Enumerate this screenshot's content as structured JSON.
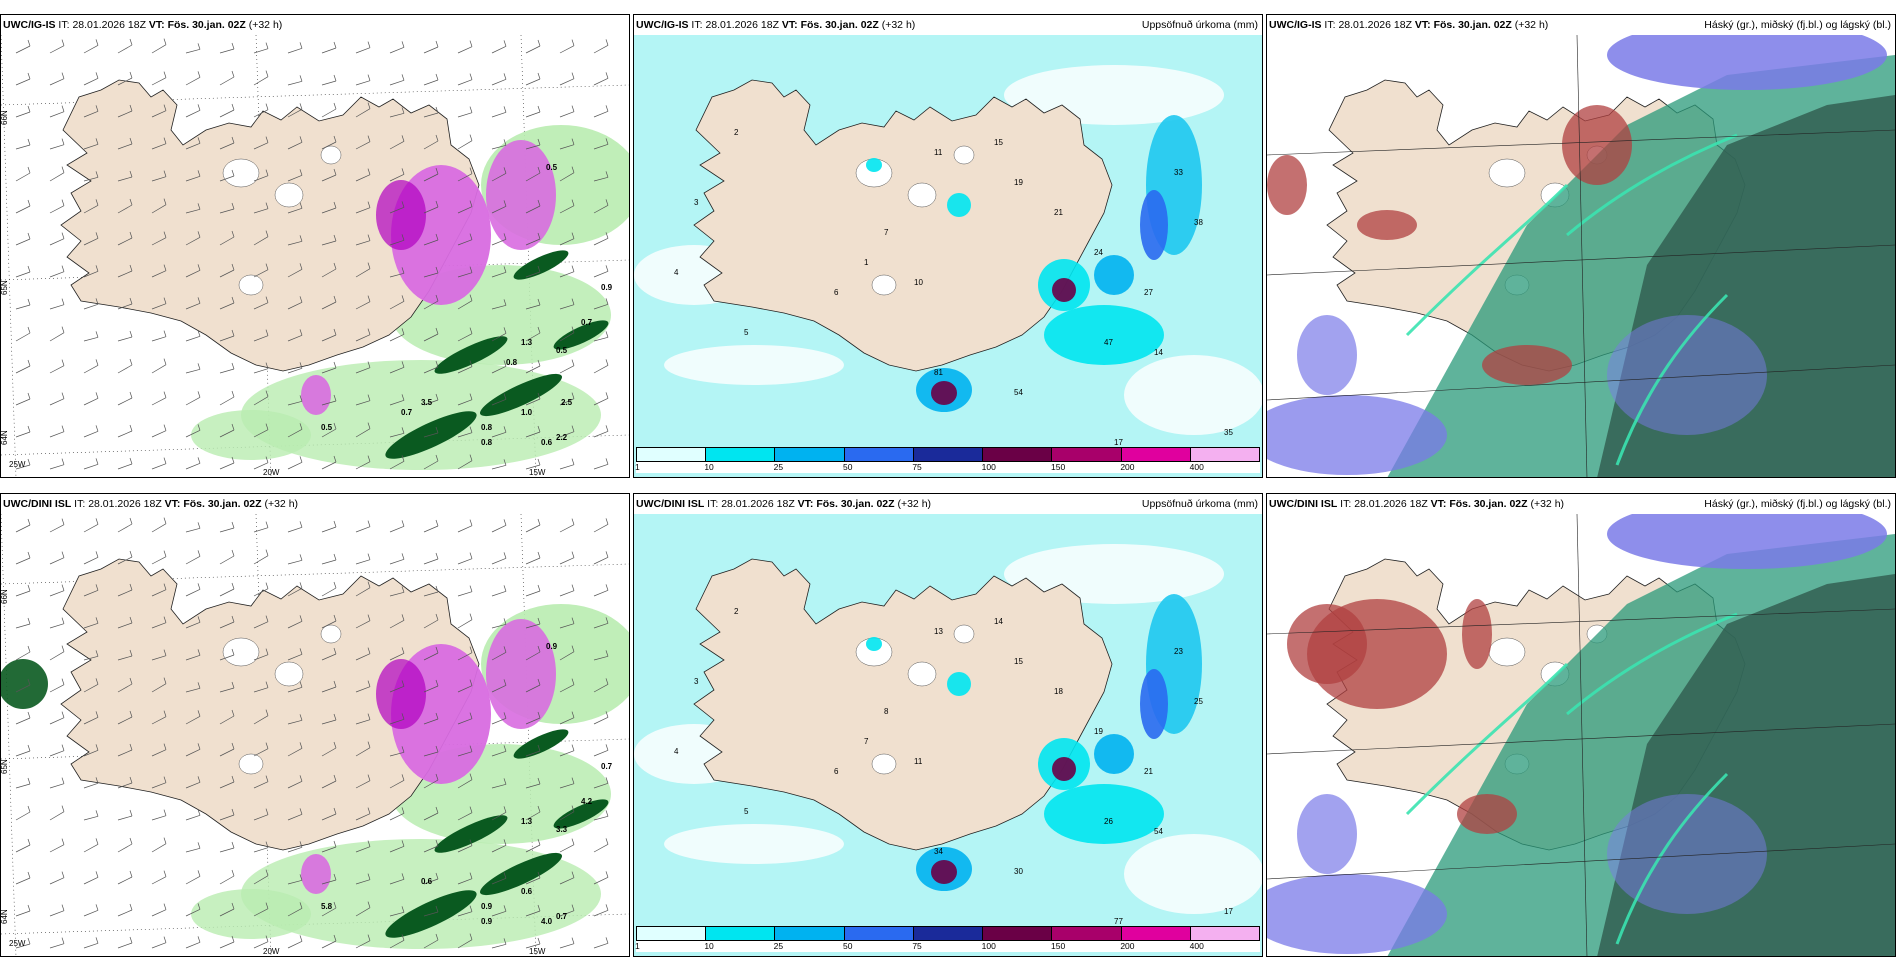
{
  "panels": [
    {
      "model": "UWC/IG-IS",
      "init_label": "IT:",
      "init_value": "28.01.2026 18Z",
      "valid_label": "VT: Fös. 30.jan. 02Z",
      "lead": "(+32 h)",
      "right_title": "",
      "type": "wind",
      "coord_labels": [
        "66N",
        "65N",
        "64N",
        "25W",
        "20W",
        "15W"
      ],
      "values": [
        "0.5",
        "0.9",
        "0.7",
        "0.5",
        "0.8",
        "0.5",
        "3.5",
        "0.8",
        "1.0",
        "0.6",
        "2.2",
        "1.3",
        "0.8",
        "2.5",
        "0.7"
      ]
    },
    {
      "model": "UWC/IG-IS",
      "init_label": "IT:",
      "init_value": "28.01.2026 18Z",
      "valid_label": "VT: Fös. 30.jan. 02Z",
      "lead": "(+32 h)",
      "right_title": "Uppsöfnuð úrkoma (mm)",
      "type": "precip",
      "values": [
        "2",
        "3",
        "4",
        "5",
        "6",
        "1",
        "7",
        "10",
        "11",
        "15",
        "19",
        "21",
        "24",
        "27",
        "33",
        "38",
        "47",
        "54",
        "81",
        "14",
        "17",
        "35"
      ]
    },
    {
      "model": "UWC/IG-IS",
      "init_label": "IT:",
      "init_value": "28.01.2026 18Z",
      "valid_label": "VT: Fös. 30.jan. 02Z",
      "lead": "(+32 h)",
      "right_title": "Háský (gr.), miðský (fj.bl.) og lágský (bl.)",
      "type": "cloud"
    },
    {
      "model": "UWC/DINI ISL",
      "init_label": "IT:",
      "init_value": "28.01.2026 18Z",
      "valid_label": "VT: Fös. 30.jan. 02Z",
      "lead": "(+32 h)",
      "right_title": "",
      "type": "wind",
      "coord_labels": [
        "66N",
        "65N",
        "64N",
        "25W",
        "20W",
        "15W"
      ],
      "values": [
        "0.9",
        "0.7",
        "4.2",
        "3.3",
        "0.9",
        "5.8",
        "0.6",
        "0.9",
        "0.6",
        "4.0",
        "0.7",
        "1.3"
      ]
    },
    {
      "model": "UWC/DINI ISL",
      "init_label": "IT:",
      "init_value": "28.01.2026 18Z",
      "valid_label": "VT: Fös. 30.jan. 02Z",
      "lead": "(+32 h)",
      "right_title": "Uppsöfnuð úrkoma (mm)",
      "type": "precip",
      "values": [
        "2",
        "3",
        "4",
        "5",
        "6",
        "7",
        "8",
        "11",
        "13",
        "14",
        "15",
        "18",
        "19",
        "21",
        "23",
        "25",
        "26",
        "30",
        "34",
        "54",
        "77",
        "17"
      ]
    },
    {
      "model": "UWC/DINI ISL",
      "init_label": "IT:",
      "init_value": "28.01.2026 18Z",
      "valid_label": "VT: Fös. 30.jan. 02Z",
      "lead": "(+32 h)",
      "right_title": "Háský (gr.), miðský (fj.bl.) og lágský (bl.)",
      "type": "cloud"
    }
  ],
  "colorbar": {
    "colors": [
      "#e0ffff",
      "#00e5f0",
      "#00b2f0",
      "#2a6af0",
      "#1a2a9a",
      "#6a0046",
      "#a8006a",
      "#e0009e",
      "#f4b0f0"
    ],
    "labels": [
      "1",
      "10",
      "25",
      "50",
      "75",
      "100",
      "150",
      "200",
      "400"
    ]
  },
  "colors": {
    "land": "#f0e0cf",
    "sea_precip": "#b4f5f5",
    "wind_green_light": "#b9ecb0",
    "wind_green_dark": "#0a5a20",
    "magenta": "#d86be0",
    "cloud_high": "#7a7ae8",
    "cloud_mid": "#2a9a7a",
    "cloud_low": "#335f52",
    "cloud_red": "#b04040"
  }
}
